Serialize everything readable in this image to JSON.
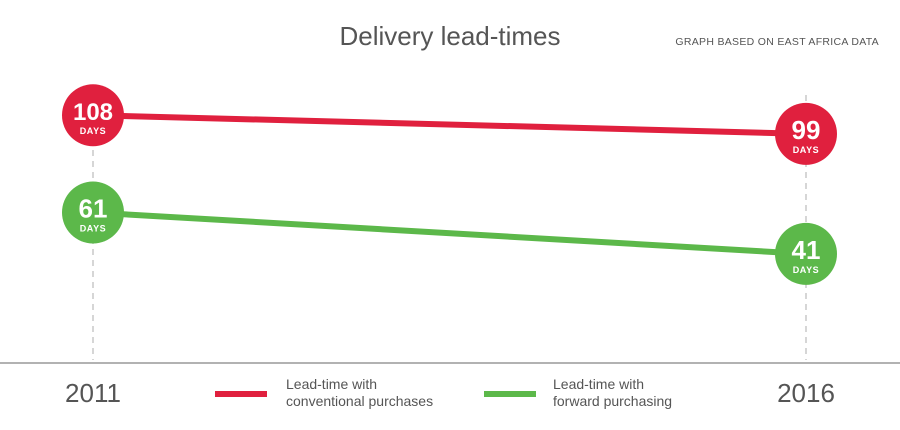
{
  "chart_data": {
    "type": "line",
    "title": "Delivery lead-times",
    "subtitle": "GRAPH BASED ON EAST AFRICA DATA",
    "x": [
      "2011",
      "2016"
    ],
    "unit_label": "DAYS",
    "series": [
      {
        "name_line1": "Lead-time with",
        "name_line2": "conventional purchases",
        "values": [
          108,
          99
        ],
        "color": "#e0203e"
      },
      {
        "name_line1": "Lead-time with",
        "name_line2": "forward purchasing",
        "values": [
          61,
          41
        ],
        "color": "#5cb84a"
      }
    ],
    "grid": false
  },
  "colors": {
    "guide": "#c8c8c8",
    "axis": "#666666",
    "text": "#555555"
  }
}
